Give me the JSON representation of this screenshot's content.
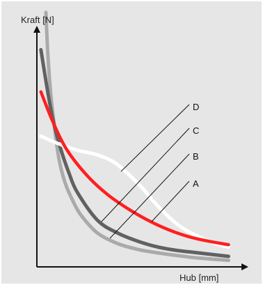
{
  "chart_data": {
    "type": "line",
    "title": "",
    "xlabel": "Hub [mm]",
    "ylabel": "Kraft [N]",
    "xlim": [
      0,
      10
    ],
    "ylim": [
      0,
      10
    ],
    "grid": false,
    "legend": "none",
    "background_color": "#e6e6e6",
    "axis_color": "#111111",
    "series": [
      {
        "name": "A",
        "color": "#ff1f1f",
        "x": [
          0.2,
          0.8,
          1.5,
          2.5,
          3.5,
          4.5,
          5.5,
          6.5,
          7.5,
          8.5,
          9.5
        ],
        "y": [
          7.5,
          6.2,
          5.0,
          3.9,
          3.1,
          2.5,
          2.0,
          1.6,
          1.3,
          1.1,
          0.95
        ]
      },
      {
        "name": "B",
        "color": "#ffffff",
        "x": [
          0.2,
          1.0,
          2.0,
          3.0,
          3.8,
          4.5,
          5.2,
          6.0,
          7.0,
          8.0,
          9.0,
          9.5
        ],
        "y": [
          5.6,
          5.3,
          5.0,
          4.8,
          4.5,
          4.0,
          3.4,
          2.6,
          1.8,
          1.3,
          0.95,
          0.85
        ]
      },
      {
        "name": "C",
        "color": "#616161",
        "x": [
          0.2,
          0.5,
          0.8,
          1.2,
          1.6,
          2.0,
          3.0,
          4.0,
          5.0,
          6.0,
          7.0,
          8.0,
          9.5
        ],
        "y": [
          9.3,
          7.7,
          6.3,
          5.0,
          4.0,
          3.2,
          2.0,
          1.45,
          1.1,
          0.85,
          0.7,
          0.6,
          0.45
        ]
      },
      {
        "name": "D",
        "color": "#aaaaaa",
        "x": [
          0.45,
          0.55,
          0.7,
          0.9,
          1.1,
          1.4,
          1.8,
          2.2,
          3.0,
          4.0,
          5.0,
          6.0,
          7.0,
          8.0,
          9.5
        ],
        "y": [
          10.9,
          9.0,
          7.3,
          5.8,
          4.6,
          3.6,
          2.8,
          2.2,
          1.45,
          1.0,
          0.75,
          0.6,
          0.48,
          0.38,
          0.28
        ]
      }
    ],
    "annotations": [
      {
        "text": "D",
        "target": "B"
      },
      {
        "text": "C",
        "target": "C"
      },
      {
        "text": "B",
        "target": "D"
      },
      {
        "text": "A",
        "target": "A"
      }
    ]
  }
}
